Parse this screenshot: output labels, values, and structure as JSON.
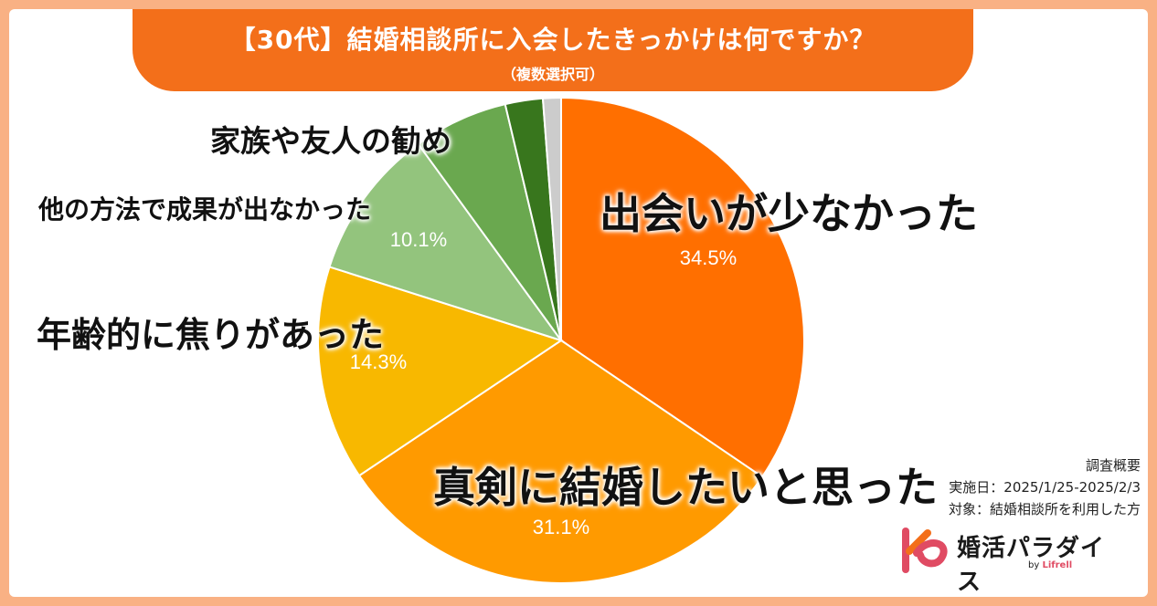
{
  "title": "【30代】結婚相談所に入会したきっかけは何ですか？",
  "subtitle": "（複数選択可）",
  "colors": {
    "background": "#f9b184",
    "banner": "#f36f1a",
    "slices": [
      "#ff6f00",
      "#ff9a00",
      "#f8b800",
      "#93c47d",
      "#6aa84f",
      "#38761d",
      "#cccccc"
    ]
  },
  "chart_data": {
    "type": "pie",
    "categories": [
      "出会いが少なかった",
      "真剣に結婚したいと思った",
      "年齢的に焦りがあった",
      "他の方法で成果が出なかった",
      "家族や友人の勧め",
      "",
      ""
    ],
    "values": [
      34.5,
      31.1,
      14.3,
      10.1,
      6.3,
      2.5,
      1.2
    ],
    "data_labels": [
      "34.5%",
      "31.1%",
      "14.3%",
      "10.1%",
      "",
      "",
      ""
    ],
    "start_angle": "12 o'clock, clockwise"
  },
  "survey": {
    "heading": "調査概要",
    "period": "実施日：2025/1/25-2025/2/3",
    "target": "対象：結婚相談所を利用した方"
  },
  "logo": {
    "name": "婚活パラダイス",
    "sub_prefix": "by",
    "sub_brand": "Lifrell",
    "mark_icon": "kp-logo-icon"
  }
}
